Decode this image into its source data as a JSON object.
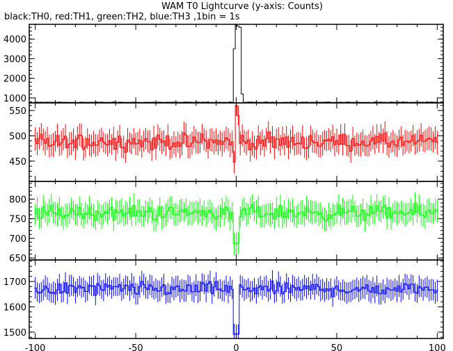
{
  "chart_data": {
    "type": "line",
    "title": "WAM T0 Lightcurve (y-axis: Counts)",
    "subtitle": "black:TH0, red:TH1, green:TH2, blue:TH3 ,1bin = 1s",
    "x_range": [
      -103,
      103
    ],
    "x_ticks": [
      -100,
      -50,
      0,
      50,
      100
    ],
    "panels": [
      {
        "series_color": "#000000",
        "y_range": [
          750,
          4750
        ],
        "y_ticks": [
          1000,
          2000,
          3000,
          4000
        ],
        "baseline": 780,
        "spread": 18,
        "errorbar": 0,
        "dip": 0,
        "spikes": [
          [
            -1,
            3500
          ],
          [
            -0.5,
            3520
          ],
          [
            0,
            4700
          ],
          [
            0.5,
            4600
          ],
          [
            1,
            4650
          ],
          [
            2,
            4600
          ],
          [
            3,
            1200
          ]
        ]
      },
      {
        "series_color": "#ff0000",
        "y_range": [
          410,
          565
        ],
        "y_ticks": [
          450,
          500,
          550
        ],
        "baseline": 488,
        "spread": 22,
        "errorbar": 22,
        "dip": 40,
        "spikes": [
          [
            0,
            560
          ],
          [
            1,
            540
          ]
        ]
      },
      {
        "series_color": "#00ff00",
        "y_range": [
          645,
          845
        ],
        "y_ticks": [
          650,
          700,
          750,
          800
        ],
        "baseline": 765,
        "spread": 28,
        "errorbar": 28,
        "dip": 80,
        "spikes": []
      },
      {
        "series_color": "#0000ff",
        "y_range": [
          1475,
          1785
        ],
        "y_ticks": [
          1500,
          1600,
          1700
        ],
        "baseline": 1670,
        "spread": 40,
        "errorbar": 40,
        "dip": 180,
        "spikes": []
      }
    ],
    "grid": false,
    "legend": "none"
  }
}
